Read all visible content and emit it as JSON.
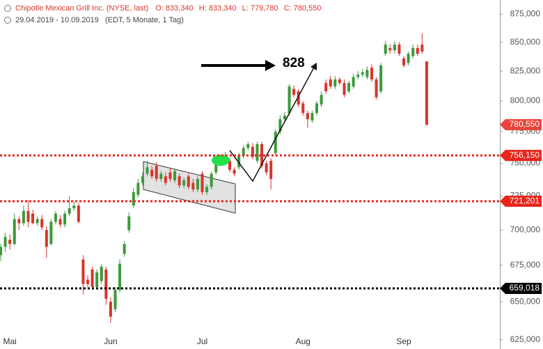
{
  "chart_data": {
    "type": "candlestick",
    "title": "Chipotle Mexican Grill Inc. (NYSE, last)",
    "header_stats": [
      "O: 833,340",
      "H: 833,340",
      "L: 779,780",
      "C: 780,550"
    ],
    "subtitle": "29.04.2019 - 10.09.2019",
    "subtitle_note": "(EDT, 5 Monate, 1 Tag)",
    "annotation": "828",
    "log_scale": true,
    "up_color": "#3a9a3a",
    "down_color": "#d9342b",
    "categories": [
      null,
      null,
      "Mai",
      null,
      null,
      null,
      null,
      null,
      null,
      null,
      null,
      null,
      null,
      null,
      null,
      null,
      null,
      null,
      null,
      null,
      null,
      null,
      null,
      null,
      "Jun",
      null,
      null,
      null,
      null,
      null,
      null,
      null,
      null,
      null,
      null,
      null,
      null,
      null,
      null,
      null,
      null,
      null,
      null,
      null,
      "Jul",
      null,
      null,
      null,
      null,
      null,
      null,
      null,
      null,
      null,
      null,
      null,
      null,
      null,
      null,
      null,
      null,
      null,
      null,
      null,
      null,
      null,
      "Aug",
      null,
      null,
      null,
      null,
      null,
      null,
      null,
      null,
      null,
      null,
      null,
      null,
      null,
      null,
      null,
      null,
      null,
      null,
      null,
      null,
      null,
      "Sep",
      null,
      null,
      null,
      null,
      null
    ],
    "open": [
      682000,
      688000,
      693000,
      690000,
      708000,
      705000,
      714000,
      712000,
      705000,
      708000,
      700000,
      690000,
      706000,
      708000,
      704000,
      712000,
      716000,
      718000,
      679000,
      665000,
      672000,
      660000,
      664000,
      672000,
      650000,
      645000,
      658000,
      683000,
      700000,
      718000,
      726000,
      735000,
      742000,
      745000,
      748000,
      738000,
      740000,
      743000,
      737000,
      740000,
      733000,
      740000,
      735000,
      730000,
      742000,
      728000,
      732000,
      743000,
      752000,
      752000,
      752000,
      745000,
      747000,
      756000,
      762000,
      763000,
      752000,
      765000,
      750000,
      752000,
      758000,
      775000,
      785000,
      790000,
      810000,
      808000,
      798000,
      790000,
      784000,
      790000,
      797000,
      815000,
      818000,
      812000,
      818000,
      815000,
      808000,
      812000,
      820000,
      822000,
      820000,
      828000,
      818000,
      808000,
      840000,
      845000,
      843000,
      848000,
      836000,
      832000,
      838000,
      845000,
      848000,
      833340
    ],
    "high": [
      690000,
      698000,
      697000,
      712000,
      710000,
      718000,
      722000,
      715000,
      710000,
      711000,
      703000,
      708000,
      714000,
      711000,
      714000,
      725000,
      721000,
      720000,
      682000,
      668000,
      674000,
      672000,
      676000,
      674000,
      653000,
      660000,
      679000,
      692000,
      713000,
      731000,
      738000,
      743000,
      752000,
      748000,
      751000,
      744000,
      743000,
      746000,
      746000,
      742000,
      739000,
      742000,
      738000,
      740000,
      744000,
      734000,
      744000,
      755000,
      757000,
      759000,
      754000,
      747000,
      758000,
      764000,
      767000,
      766000,
      767000,
      767000,
      752000,
      754000,
      777000,
      788000,
      791000,
      814000,
      813000,
      810000,
      800000,
      792000,
      792000,
      800000,
      808000,
      818000,
      821000,
      821000,
      820000,
      818000,
      817000,
      823000,
      825000,
      827000,
      829000,
      831000,
      820000,
      832000,
      851000,
      848000,
      851000,
      850000,
      838000,
      842000,
      848000,
      848000,
      858000,
      833340
    ],
    "low": [
      678000,
      684000,
      686000,
      689000,
      700000,
      703000,
      702000,
      704000,
      703000,
      700000,
      680000,
      689000,
      704000,
      702000,
      702000,
      710000,
      714000,
      705000,
      655000,
      660000,
      658000,
      658000,
      662000,
      648000,
      636000,
      643000,
      656000,
      681000,
      698000,
      716000,
      724000,
      733000,
      740000,
      738000,
      736000,
      736000,
      733000,
      736000,
      735000,
      731000,
      731000,
      730000,
      728000,
      728000,
      726000,
      726000,
      730000,
      741000,
      750000,
      750000,
      743000,
      740000,
      745000,
      754000,
      760000,
      753000,
      750000,
      746000,
      741000,
      730000,
      756000,
      773000,
      783000,
      788000,
      803000,
      795000,
      788000,
      778000,
      782000,
      788000,
      795000,
      806000,
      810000,
      810000,
      813000,
      803000,
      806000,
      810000,
      818000,
      820000,
      818000,
      816000,
      801000,
      806000,
      838000,
      840000,
      840000,
      838000,
      828000,
      830000,
      836000,
      838000,
      840000,
      779780
    ],
    "close": [
      688000,
      695000,
      690000,
      708000,
      705000,
      714000,
      706000,
      705000,
      708000,
      702000,
      688000,
      706000,
      712000,
      704000,
      712000,
      716000,
      718000,
      706000,
      662000,
      662000,
      660000,
      670000,
      674000,
      652000,
      640000,
      658000,
      676000,
      690000,
      710000,
      728000,
      735000,
      740000,
      747000,
      740000,
      738000,
      742000,
      735000,
      738000,
      744000,
      733000,
      737000,
      732000,
      730000,
      738000,
      728000,
      732000,
      742000,
      752000,
      755000,
      756000,
      745000,
      742000,
      756000,
      762000,
      765000,
      755000,
      765000,
      748000,
      743000,
      738000,
      775000,
      785000,
      788000,
      812000,
      805000,
      797000,
      790000,
      785000,
      790000,
      798000,
      805000,
      808000,
      812000,
      818000,
      815000,
      805000,
      815000,
      820000,
      822000,
      824000,
      826000,
      818000,
      803000,
      830000,
      848000,
      843000,
      848000,
      840000,
      830000,
      840000,
      845000,
      840000,
      842000,
      780550
    ],
    "ylim": [
      619000,
      888000
    ],
    "yticks": [
      {
        "value": 625000,
        "label": "625,000"
      },
      {
        "value": 650000,
        "label": "650,000"
      },
      {
        "value": 675000,
        "label": "675,000"
      },
      {
        "value": 700000,
        "label": "700,000"
      },
      {
        "value": 725000,
        "label": "725,000"
      },
      {
        "value": 750000,
        "label": "750,000"
      },
      {
        "value": 775000,
        "label": "775,000"
      },
      {
        "value": 800000,
        "label": "800,000"
      },
      {
        "value": 825000,
        "label": "825,000"
      },
      {
        "value": 850000,
        "label": "850,000"
      },
      {
        "value": 875000,
        "label": "875,000"
      }
    ],
    "levels": [
      {
        "value": 756150,
        "label": "756,150",
        "color": "#e8261c"
      },
      {
        "value": 721201,
        "label": "721,201",
        "color": "#e8261c"
      },
      {
        "value": 659018,
        "label": "659,018",
        "color": "#000000"
      }
    ],
    "last_price": {
      "value": 780550,
      "label": "780,550",
      "color": "#e8463c"
    }
  }
}
